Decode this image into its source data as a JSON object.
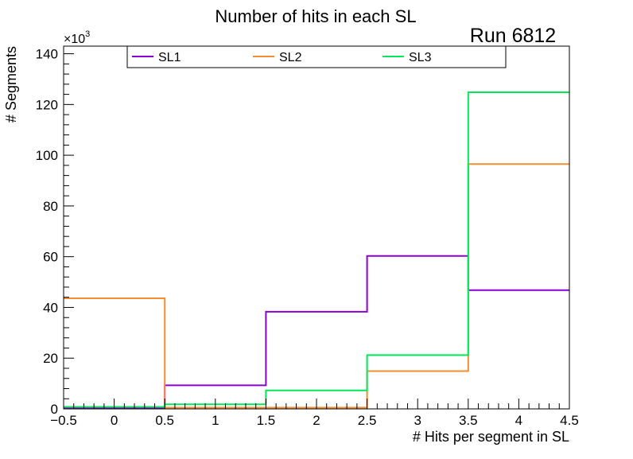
{
  "chart_data": {
    "type": "step-histogram",
    "title": "Number of hits in each SL",
    "annotation": "Run 6812",
    "xlabel": "# Hits per segment in SL",
    "ylabel": "# Segments",
    "y_multiplier_base": "×10",
    "y_multiplier_exp": "3",
    "xlim": [
      -0.5,
      4.5
    ],
    "ylim": [
      0,
      143
    ],
    "bin_edges": [
      -0.5,
      0.5,
      1.5,
      2.5,
      3.5,
      4.5
    ],
    "x_ticks": [
      {
        "value": -0.5,
        "label": "−0.5"
      },
      {
        "value": 0,
        "label": "0"
      },
      {
        "value": 0.5,
        "label": "0.5"
      },
      {
        "value": 1,
        "label": "1"
      },
      {
        "value": 1.5,
        "label": "1.5"
      },
      {
        "value": 2,
        "label": "2"
      },
      {
        "value": 2.5,
        "label": "2.5"
      },
      {
        "value": 3,
        "label": "3"
      },
      {
        "value": 3.5,
        "label": "3.5"
      },
      {
        "value": 4,
        "label": "4"
      },
      {
        "value": 4.5,
        "label": "4.5"
      }
    ],
    "y_ticks": [
      {
        "value": 0,
        "label": "0"
      },
      {
        "value": 20,
        "label": "20"
      },
      {
        "value": 40,
        "label": "40"
      },
      {
        "value": 60,
        "label": "60"
      },
      {
        "value": 80,
        "label": "80"
      },
      {
        "value": 100,
        "label": "100"
      },
      {
        "value": 120,
        "label": "120"
      },
      {
        "value": 140,
        "label": "140"
      }
    ],
    "series": [
      {
        "name": "SL1",
        "color": "#8a00d4",
        "values": [
          0.3,
          9.3,
          38.3,
          60.3,
          46.8
        ]
      },
      {
        "name": "SL2",
        "color": "#f28f33",
        "values": [
          43.6,
          0.5,
          0.5,
          14.9,
          96.5
        ]
      },
      {
        "name": "SL3",
        "color": "#00e85a",
        "values": [
          0.8,
          1.8,
          7.3,
          21.2,
          124.8
        ]
      }
    ],
    "legend_position": "top"
  }
}
